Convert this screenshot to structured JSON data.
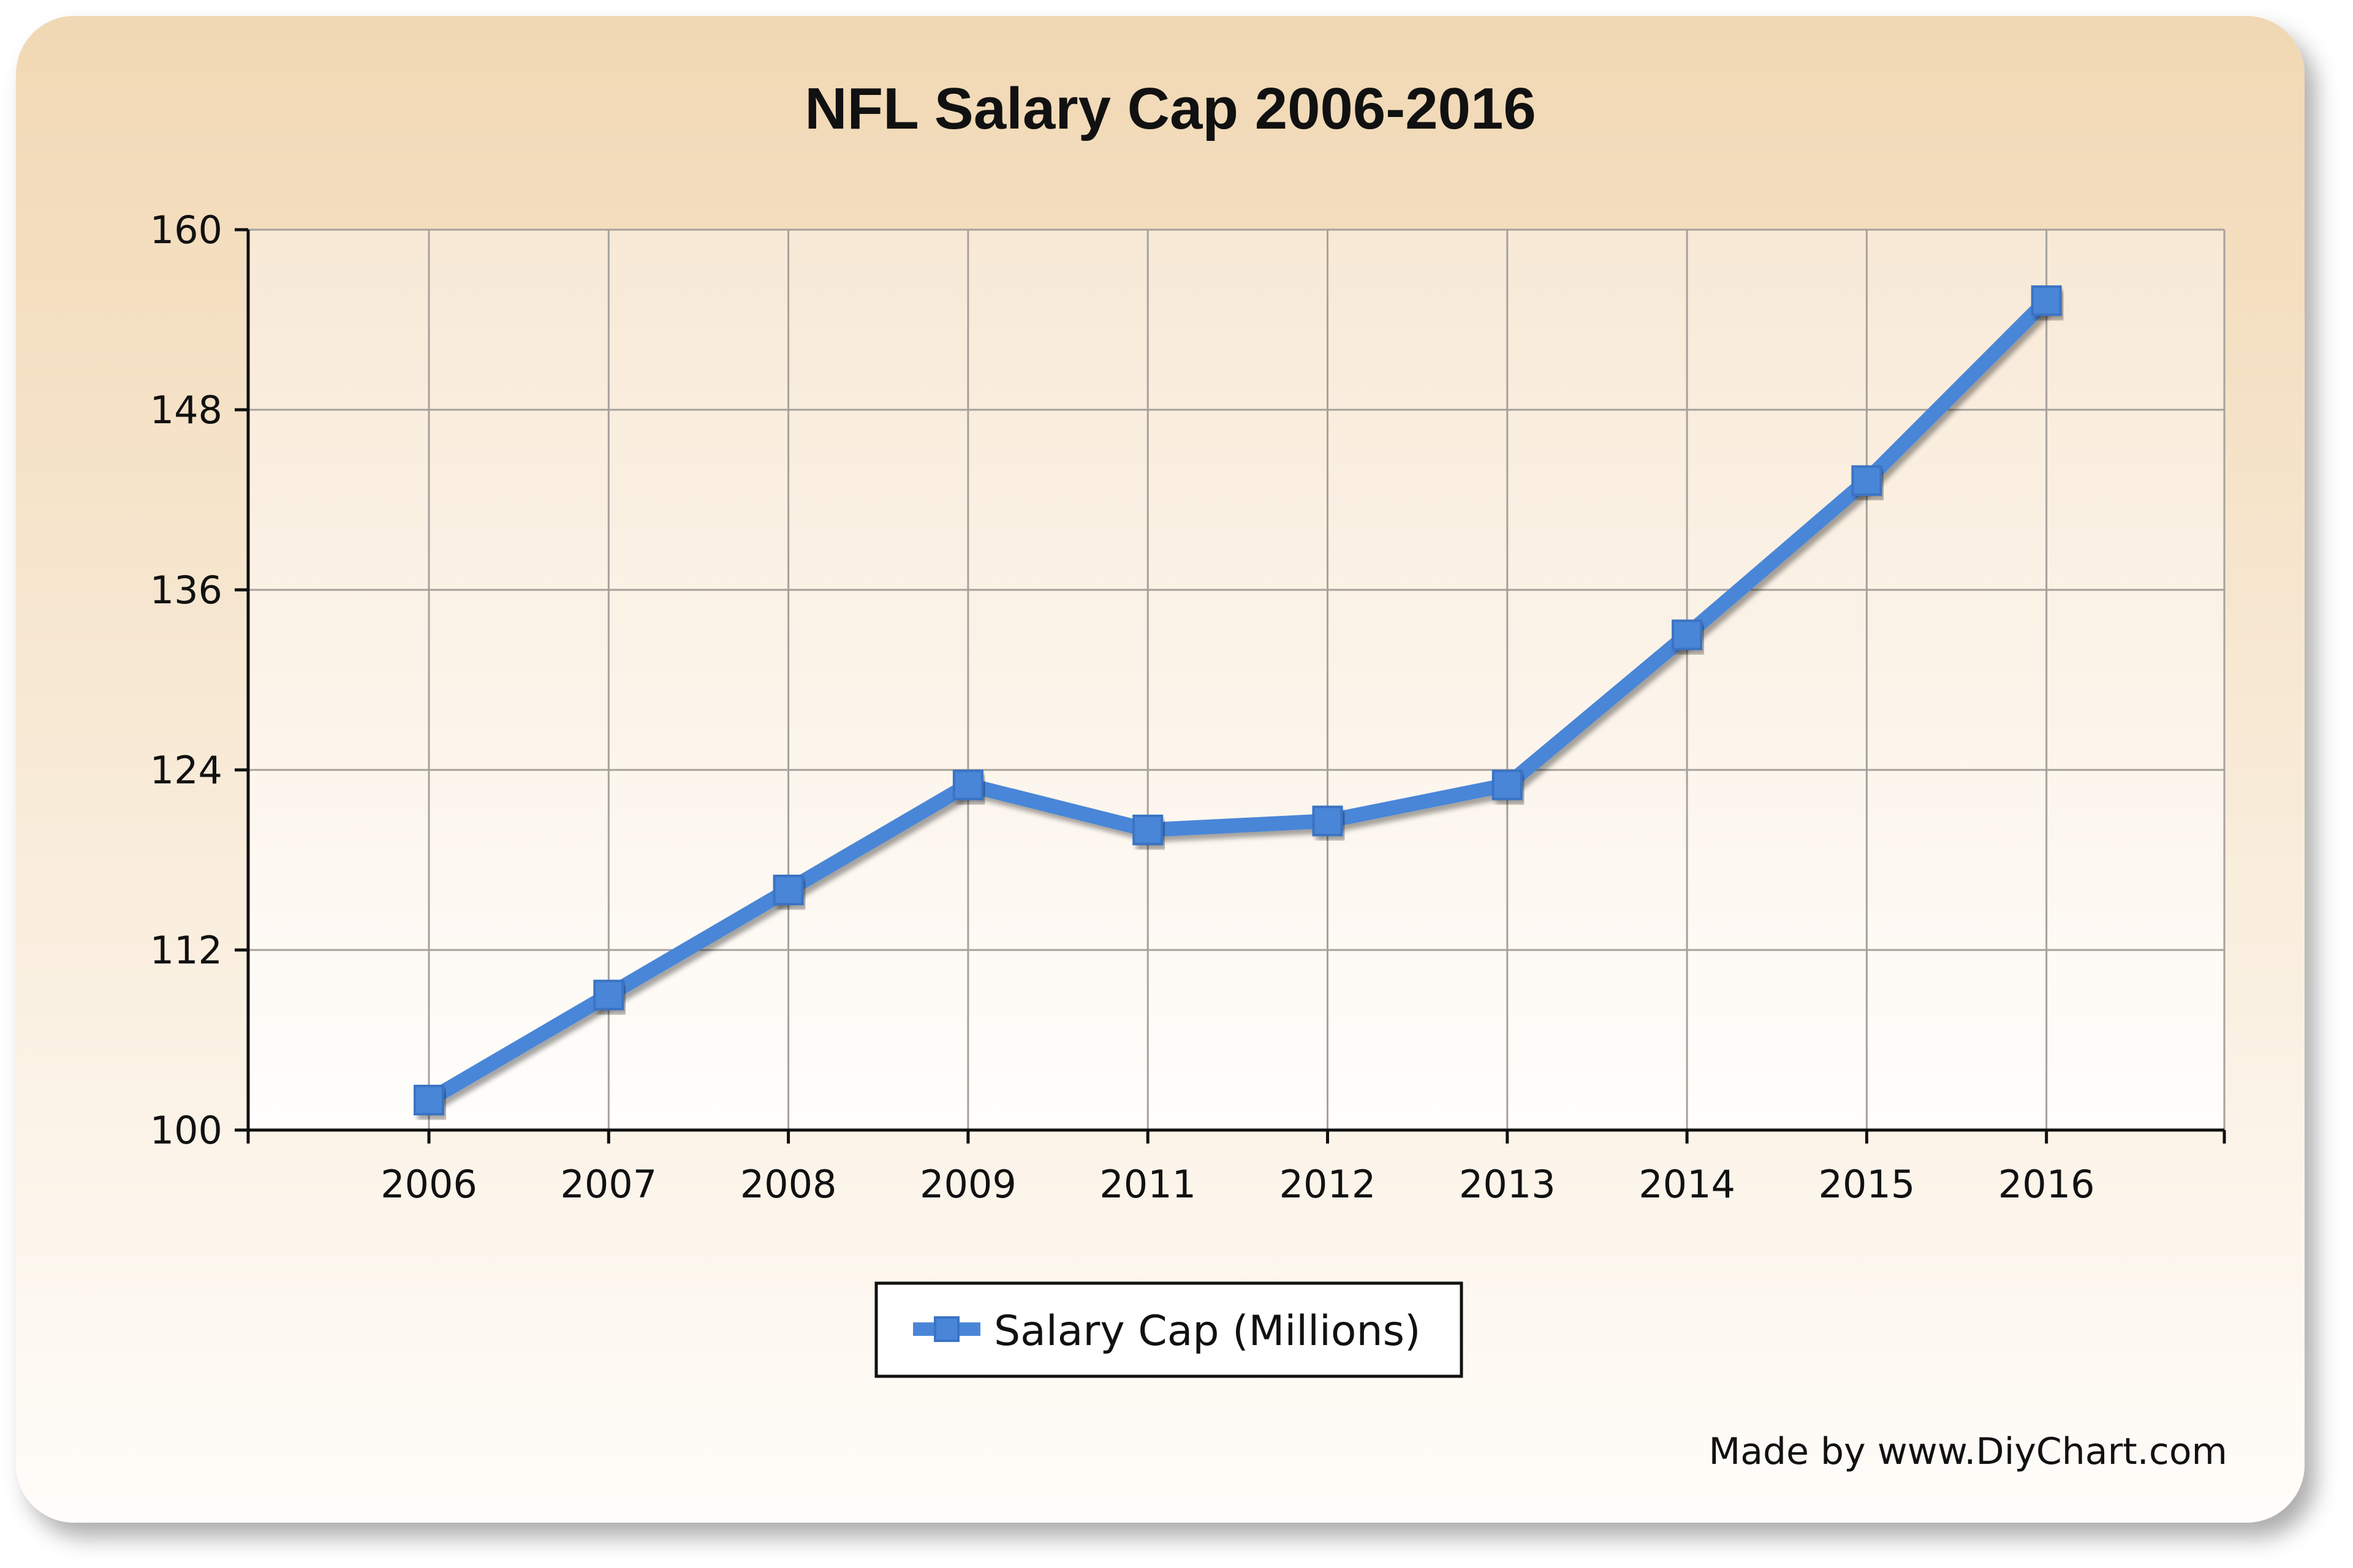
{
  "chart_data": {
    "type": "line",
    "title": "NFL Salary Cap 2006-2016",
    "categories": [
      "2006",
      "2007",
      "2008",
      "2009",
      "2011",
      "2012",
      "2013",
      "2014",
      "2015",
      "2016"
    ],
    "series": [
      {
        "name": "Salary Cap (Millions)",
        "values": [
          102,
          109,
          116,
          123,
          120,
          120.6,
          123,
          133,
          143.28,
          155.27
        ],
        "color": "#4a86d8"
      }
    ],
    "yticks": [
      "100",
      "112",
      "124",
      "136",
      "148",
      "160"
    ],
    "ylim": [
      100,
      160
    ],
    "grid": true,
    "legend_position": "bottom"
  },
  "credit": "Made by www.DiyChart.com",
  "colors": {
    "card_top": "#f1d8b4",
    "card_bottom": "#fffdfa",
    "plot_top": "#f8e9d6",
    "plot_bottom": "#fffefc",
    "grid": "#a6a19b",
    "axis": "#111111",
    "text": "#111111"
  }
}
